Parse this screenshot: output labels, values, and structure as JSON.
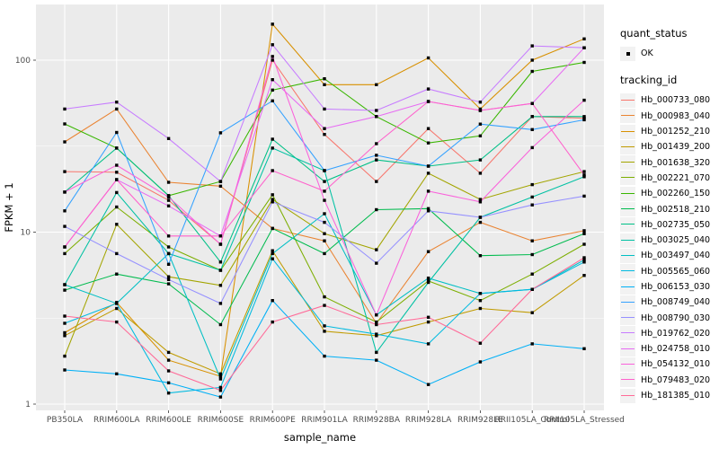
{
  "figure": {
    "panel_bg": "#EBEBEB",
    "grid_color": "#FFFFFF",
    "tick_color": "#333333",
    "tick_label_color": "#4D4D4D",
    "legend_key_bg": "#F2F2F2"
  },
  "legend": {
    "quant_status_title": "quant_status",
    "quant_status_items": [
      {
        "label": "OK",
        "marker": "black-point"
      }
    ],
    "tracking_id_title": "tracking_id"
  },
  "chart_data": {
    "type": "line",
    "title": "",
    "xlabel": "sample_name",
    "ylabel": "FPKM + 1",
    "y_scale": "log10",
    "ylim": [
      0.92,
      210
    ],
    "y_breaks": [
      1,
      10,
      100
    ],
    "y_minor_breaks": [
      3.162,
      31.62
    ],
    "grid": true,
    "legend_position": "right",
    "point_shape": "small-black-square",
    "categories": [
      "PB350LA",
      "RRIM600LA",
      "RRIM600LE",
      "RRIM600SE",
      "RRIM600PE",
      "RRIM901LA",
      "RRIM928BA",
      "RRIM928LA",
      "RRIM928LE",
      "RRII105LA_Control",
      "RRII105LA_Stressed"
    ],
    "series": [
      {
        "name": "Hb_000733_080",
        "color": "#F8766D",
        "values": [
          22.5,
          22.3,
          15.3,
          8.5,
          100,
          37,
          19.7,
          40,
          22,
          47,
          46
        ]
      },
      {
        "name": "Hb_000983_040",
        "color": "#EA8331",
        "values": [
          33.5,
          52,
          19.5,
          18.5,
          10.5,
          8.9,
          2.95,
          7.7,
          11.4,
          8.9,
          10.2
        ]
      },
      {
        "name": "Hb_001252_210",
        "color": "#D89000",
        "values": [
          2.6,
          3.9,
          1.8,
          1.45,
          162,
          72,
          72,
          103,
          52,
          100,
          133
        ]
      },
      {
        "name": "Hb_001439_200",
        "color": "#C09B00",
        "values": [
          2.5,
          3.6,
          2.0,
          1.5,
          7.8,
          2.65,
          2.5,
          3.0,
          3.6,
          3.4,
          5.6
        ]
      },
      {
        "name": "Hb_001638_320",
        "color": "#A3A500",
        "values": [
          1.9,
          11.1,
          5.5,
          4.9,
          15.5,
          9.8,
          7.9,
          22,
          15.5,
          18.9,
          22.5
        ]
      },
      {
        "name": "Hb_002221_070",
        "color": "#7CAE00",
        "values": [
          7.5,
          14.0,
          8.2,
          6.0,
          16.5,
          4.2,
          3.0,
          5.2,
          4.0,
          5.7,
          8.5
        ]
      },
      {
        "name": "Hb_002260_150",
        "color": "#39B600",
        "values": [
          42.6,
          30.8,
          16.3,
          19.7,
          67,
          78,
          47,
          33,
          36.3,
          86,
          97
        ]
      },
      {
        "name": "Hb_002518_210",
        "color": "#00BB4E",
        "values": [
          4.6,
          5.7,
          5.0,
          2.9,
          10.5,
          7.5,
          13.5,
          13.7,
          7.3,
          7.4,
          9.8
        ]
      },
      {
        "name": "Hb_002735_050",
        "color": "#00C087",
        "values": [
          17.1,
          30.8,
          16.3,
          6.7,
          34.7,
          19.7,
          26.3,
          24.2,
          26.3,
          47,
          47
        ]
      },
      {
        "name": "Hb_003025_040",
        "color": "#00C1A3",
        "values": [
          4.95,
          17,
          7.5,
          6.0,
          30.8,
          22.8,
          2.0,
          5.1,
          12.2,
          16,
          21
        ]
      },
      {
        "name": "Hb_003497_040",
        "color": "#00BFC4",
        "values": [
          4.95,
          3.85,
          7.5,
          1.4,
          7.5,
          12.8,
          3.3,
          5.4,
          4.4,
          4.65,
          6.9
        ]
      },
      {
        "name": "Hb_005565_060",
        "color": "#00BAE0",
        "values": [
          2.95,
          3.85,
          1.16,
          1.25,
          7.0,
          2.85,
          2.55,
          2.24,
          4.4,
          4.65,
          6.7
        ]
      },
      {
        "name": "Hb_006153_030",
        "color": "#00B0F6",
        "values": [
          1.58,
          1.5,
          1.33,
          1.1,
          4.0,
          1.9,
          1.8,
          1.3,
          1.76,
          2.24,
          2.1
        ]
      },
      {
        "name": "Hb_008749_040",
        "color": "#35A2FF",
        "values": [
          13.3,
          38,
          6.5,
          37.8,
          58,
          22.8,
          28,
          24.2,
          42.5,
          39.5,
          45
        ]
      },
      {
        "name": "Hb_008790_030",
        "color": "#9590FF",
        "values": [
          10.8,
          7.5,
          5.3,
          3.85,
          15,
          11.4,
          6.6,
          13.3,
          12.2,
          14.4,
          16.2
        ]
      },
      {
        "name": "Hb_019762_020",
        "color": "#C77CFF",
        "values": [
          52,
          57,
          35,
          19.7,
          123,
          52,
          51,
          68,
          57,
          121,
          118
        ]
      },
      {
        "name": "Hb_024758_010",
        "color": "#E76BF3",
        "values": [
          8.2,
          20.2,
          14.2,
          9.5,
          77,
          40,
          47,
          57.5,
          51,
          56,
          118
        ]
      },
      {
        "name": "Hb_054132_010",
        "color": "#FA62DB",
        "values": [
          17.1,
          24.5,
          16,
          8.5,
          105,
          15.3,
          3.3,
          17.3,
          15,
          31,
          58.5
        ]
      },
      {
        "name": "Hb_079483_020",
        "color": "#FF61CC",
        "values": [
          8.2,
          20.2,
          9.5,
          9.5,
          22.8,
          17.3,
          32.7,
          57.5,
          51,
          56,
          21.5
        ]
      },
      {
        "name": "Hb_181385_010",
        "color": "#FF6A98",
        "values": [
          3.25,
          3.0,
          1.56,
          1.2,
          3.0,
          3.75,
          2.9,
          3.2,
          2.26,
          4.65,
          7.1
        ]
      }
    ]
  }
}
